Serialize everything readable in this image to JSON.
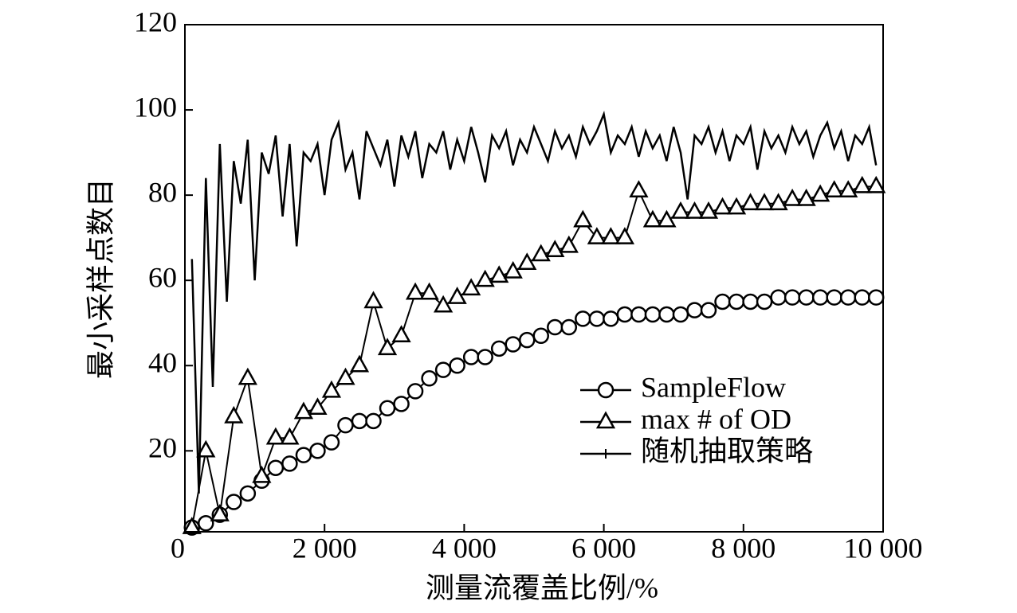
{
  "chart_data": {
    "type": "line",
    "xlabel": "测量流覆盖比例/%",
    "ylabel": "最小采样点数目",
    "xlim": [
      0,
      10000
    ],
    "xticks": [
      0,
      {
        "value": 2000,
        "label": "2 000"
      },
      {
        "value": 4000,
        "label": "4 000"
      },
      {
        "value": 6000,
        "label": "6 000"
      },
      {
        "value": 8000,
        "label": "8 000"
      },
      {
        "value": 10000,
        "label": "10 000"
      }
    ],
    "ylim": [
      1,
      120
    ],
    "yticks": [
      20,
      40,
      60,
      80,
      100,
      120
    ],
    "legend": "lower right",
    "series": [
      {
        "name": "SampleFlow",
        "color": "#000000",
        "marker": "circle",
        "x": [
          100,
          300,
          500,
          700,
          900,
          1100,
          1300,
          1500,
          1700,
          1900,
          2100,
          2300,
          2500,
          2700,
          2900,
          3100,
          3300,
          3500,
          3700,
          3900,
          4100,
          4300,
          4500,
          4700,
          4900,
          5100,
          5300,
          5500,
          5700,
          5900,
          6100,
          6300,
          6500,
          6700,
          6900,
          7100,
          7300,
          7500,
          7700,
          7900,
          8100,
          8300,
          8500,
          8700,
          8900,
          9100,
          9300,
          9500,
          9700,
          9900
        ],
        "values": [
          2,
          3,
          5,
          8,
          10,
          13,
          16,
          17,
          19,
          20,
          22,
          26,
          27,
          27,
          30,
          31,
          34,
          37,
          39,
          40,
          42,
          42,
          44,
          45,
          46,
          47,
          49,
          49,
          51,
          51,
          51,
          52,
          52,
          52,
          52,
          52,
          53,
          53,
          55,
          55,
          55,
          55,
          56,
          56,
          56,
          56,
          56,
          56,
          56,
          56
        ]
      },
      {
        "name": "max # of OD",
        "color": "#000000",
        "marker": "triangle",
        "x": [
          100,
          300,
          500,
          700,
          900,
          1100,
          1300,
          1500,
          1700,
          1900,
          2100,
          2300,
          2500,
          2700,
          2900,
          3100,
          3300,
          3500,
          3700,
          3900,
          4100,
          4300,
          4500,
          4700,
          4900,
          5100,
          5300,
          5500,
          5700,
          5900,
          6100,
          6300,
          6500,
          6700,
          6900,
          7100,
          7300,
          7500,
          7700,
          7900,
          8100,
          8300,
          8500,
          8700,
          8900,
          9100,
          9300,
          9500,
          9700,
          9900
        ],
        "values": [
          2,
          20,
          5,
          28,
          37,
          14,
          23,
          23,
          29,
          30,
          34,
          37,
          40,
          55,
          44,
          47,
          57,
          57,
          54,
          56,
          58,
          60,
          61,
          62,
          64,
          66,
          67,
          68,
          74,
          70,
          70,
          70,
          81,
          74,
          74,
          76,
          76,
          76,
          77,
          77,
          78,
          78,
          78,
          79,
          79,
          80,
          81,
          81,
          82,
          82
        ]
      },
      {
        "name": "随机抽取策略",
        "color": "#000000",
        "marker": "plus",
        "x": [
          100,
          200,
          300,
          400,
          500,
          600,
          700,
          800,
          900,
          1000,
          1100,
          1200,
          1300,
          1400,
          1500,
          1600,
          1700,
          1800,
          1900,
          2000,
          2100,
          2200,
          2300,
          2400,
          2500,
          2600,
          2700,
          2800,
          2900,
          3000,
          3100,
          3200,
          3300,
          3400,
          3500,
          3600,
          3700,
          3800,
          3900,
          4000,
          4100,
          4200,
          4300,
          4400,
          4500,
          4600,
          4700,
          4800,
          4900,
          5000,
          5100,
          5200,
          5300,
          5400,
          5500,
          5600,
          5700,
          5800,
          5900,
          6000,
          6100,
          6200,
          6300,
          6400,
          6500,
          6600,
          6700,
          6800,
          6900,
          7000,
          7100,
          7200,
          7300,
          7400,
          7500,
          7600,
          7700,
          7800,
          7900,
          8000,
          8100,
          8200,
          8300,
          8400,
          8500,
          8600,
          8700,
          8800,
          8900,
          9000,
          9100,
          9200,
          9300,
          9400,
          9500,
          9600,
          9700,
          9800,
          9900
        ],
        "values": [
          65,
          10,
          84,
          35,
          92,
          55,
          88,
          78,
          93,
          60,
          90,
          85,
          94,
          75,
          92,
          68,
          90,
          88,
          92,
          80,
          93,
          97,
          86,
          90,
          79,
          95,
          91,
          87,
          93,
          82,
          94,
          89,
          95,
          84,
          92,
          90,
          95,
          86,
          93,
          88,
          96,
          90,
          83,
          94,
          91,
          95,
          87,
          93,
          90,
          96,
          92,
          88,
          95,
          91,
          94,
          89,
          96,
          92,
          95,
          99,
          90,
          94,
          92,
          96,
          89,
          95,
          91,
          94,
          88,
          96,
          90,
          79,
          94,
          92,
          96,
          90,
          95,
          88,
          94,
          92,
          96,
          86,
          95,
          91,
          94,
          90,
          96,
          92,
          95,
          89,
          94,
          97,
          91,
          95,
          88,
          94,
          92,
          96,
          87
        ]
      }
    ]
  }
}
